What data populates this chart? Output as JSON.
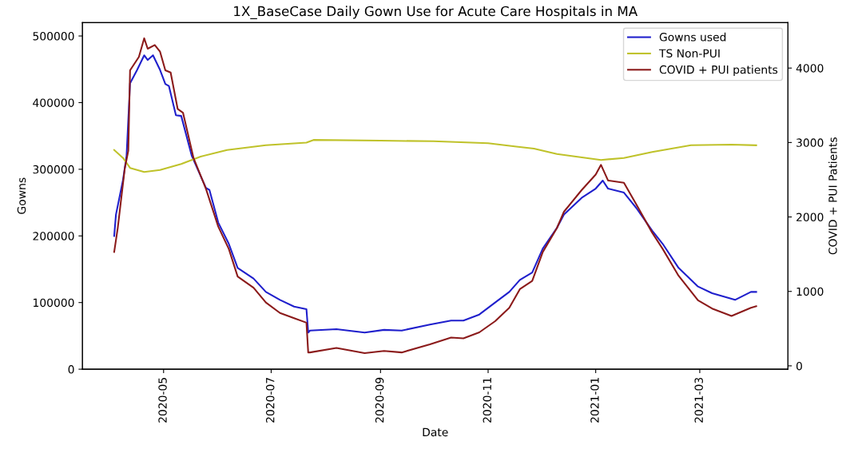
{
  "chart_data": {
    "type": "line",
    "title": "1X_BaseCase Daily Gown Use for Acute Care Hospitals in MA",
    "xlabel": "Date",
    "ylabel": "Gowns",
    "y2label": "COVID + PUI Patients",
    "legend": "top right",
    "grid": false,
    "xlim": [
      "2020-03-16",
      "2021-04-20"
    ],
    "xticks": [
      "2020-05",
      "2020-07",
      "2020-09",
      "2020-11",
      "2021-01",
      "2021-03"
    ],
    "ylim": [
      0,
      520000
    ],
    "yticks": [
      0,
      100000,
      200000,
      300000,
      400000,
      500000
    ],
    "y2lim": [
      -45,
      4610
    ],
    "y2ticks": [
      0,
      1000,
      2000,
      3000,
      4000
    ],
    "series": [
      {
        "name": "Gowns used",
        "color": "#1f1fcc",
        "x": [
          "2020-04-03",
          "2020-04-04",
          "2020-04-08",
          "2020-04-10",
          "2020-04-12",
          "2020-04-16",
          "2020-04-20",
          "2020-04-22",
          "2020-04-25",
          "2020-04-29",
          "2020-05-02",
          "2020-05-04",
          "2020-05-08",
          "2020-05-11",
          "2020-05-17",
          "2020-05-25",
          "2020-05-27",
          "2020-06-01",
          "2020-06-07",
          "2020-06-12",
          "2020-06-21",
          "2020-06-28",
          "2020-07-06",
          "2020-07-14",
          "2020-07-21",
          "2020-07-22",
          "2020-07-23",
          "2020-08-07",
          "2020-08-23",
          "2020-09-03",
          "2020-09-13",
          "2020-09-29",
          "2020-10-11",
          "2020-10-18",
          "2020-10-27",
          "2020-11-05",
          "2020-11-13",
          "2020-11-19",
          "2020-11-26",
          "2020-12-02",
          "2020-12-10",
          "2020-12-14",
          "2020-12-24",
          "2021-01-01",
          "2021-01-05",
          "2021-01-08",
          "2021-01-17",
          "2021-01-24",
          "2021-02-02",
          "2021-02-08",
          "2021-02-17",
          "2021-02-28",
          "2021-03-08",
          "2021-03-21",
          "2021-03-30",
          "2021-04-02"
        ],
        "values": [
          200000,
          232000,
          284000,
          320000,
          429000,
          449000,
          471000,
          464000,
          471000,
          449000,
          428000,
          425000,
          381000,
          380000,
          320000,
          272000,
          269000,
          220000,
          188000,
          152000,
          136000,
          116000,
          104000,
          94000,
          90000,
          55000,
          58000,
          60000,
          55000,
          59000,
          58000,
          67000,
          73000,
          73000,
          82000,
          100000,
          116000,
          134000,
          145000,
          181000,
          212000,
          232000,
          257000,
          271000,
          283000,
          271000,
          265000,
          242000,
          208000,
          188000,
          152000,
          124000,
          114000,
          104000,
          116000,
          116000
        ]
      },
      {
        "name": "TS Non-PUI",
        "color": "#bfc22a",
        "x": [
          "2020-04-03",
          "2020-04-08",
          "2020-04-12",
          "2020-04-20",
          "2020-04-29",
          "2020-05-11",
          "2020-05-22",
          "2020-06-06",
          "2020-06-28",
          "2020-07-21",
          "2020-07-25",
          "2020-09-01",
          "2020-10-01",
          "2020-11-01",
          "2020-11-17",
          "2020-11-27",
          "2020-12-10",
          "2021-01-04",
          "2021-01-17",
          "2021-02-02",
          "2021-02-24",
          "2021-03-19",
          "2021-04-02"
        ],
        "values": [
          329000,
          317000,
          302000,
          296000,
          299000,
          308000,
          319000,
          329000,
          336000,
          340000,
          344000,
          343000,
          342000,
          339000,
          334000,
          331000,
          323000,
          314000,
          317000,
          326000,
          336000,
          337000,
          336000
        ]
      },
      {
        "name": "COVID + PUI patients",
        "color": "#8b1a1a",
        "axis": "y2",
        "x": [
          "2020-04-03",
          "2020-04-05",
          "2020-04-09",
          "2020-04-11",
          "2020-04-12",
          "2020-04-17",
          "2020-04-20",
          "2020-04-22",
          "2020-04-26",
          "2020-04-29",
          "2020-05-02",
          "2020-05-05",
          "2020-05-09",
          "2020-05-12",
          "2020-05-18",
          "2020-05-25",
          "2020-06-01",
          "2020-06-07",
          "2020-06-12",
          "2020-06-21",
          "2020-06-28",
          "2020-07-06",
          "2020-07-14",
          "2020-07-21",
          "2020-07-22",
          "2020-07-23",
          "2020-08-07",
          "2020-08-23",
          "2020-09-03",
          "2020-09-13",
          "2020-09-29",
          "2020-10-11",
          "2020-10-18",
          "2020-10-27",
          "2020-11-05",
          "2020-11-13",
          "2020-11-19",
          "2020-11-26",
          "2020-12-02",
          "2020-12-10",
          "2020-12-14",
          "2020-12-24",
          "2021-01-01",
          "2021-01-04",
          "2021-01-08",
          "2021-01-17",
          "2021-01-24",
          "2021-02-02",
          "2021-02-08",
          "2021-02-17",
          "2021-02-28",
          "2021-03-08",
          "2021-03-19",
          "2021-03-30",
          "2021-04-02"
        ],
        "values": [
          1530,
          1850,
          2650,
          2890,
          3970,
          4150,
          4400,
          4260,
          4310,
          4220,
          3970,
          3940,
          3450,
          3400,
          2790,
          2380,
          1870,
          1570,
          1200,
          1050,
          850,
          710,
          640,
          580,
          180,
          180,
          240,
          170,
          200,
          180,
          290,
          380,
          370,
          450,
          600,
          780,
          1030,
          1140,
          1530,
          1850,
          2070,
          2360,
          2570,
          2700,
          2490,
          2460,
          2170,
          1790,
          1570,
          1210,
          880,
          770,
          670,
          780,
          800
        ]
      }
    ]
  }
}
